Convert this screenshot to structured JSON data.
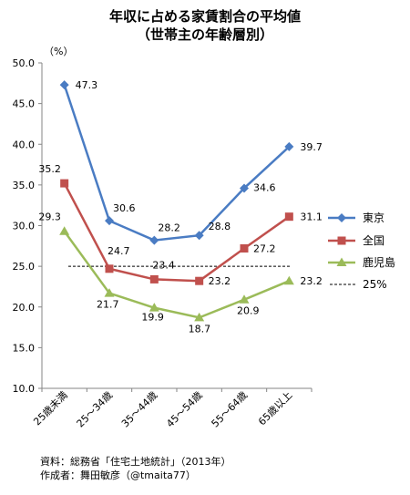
{
  "header": {
    "title_line1": "年収に占める家賃割合の平均値",
    "title_line2": "（世帯主の年齢層別）"
  },
  "chart_data": {
    "type": "line",
    "unit_label": "（%）",
    "categories": [
      "25歳未満",
      "25～34歳",
      "35～44歳",
      "45～54歳",
      "55～64歳",
      "65歳以上"
    ],
    "ylim": [
      10,
      50
    ],
    "yticks": [
      "10.0",
      "15.0",
      "20.0",
      "25.0",
      "30.0",
      "35.0",
      "40.0",
      "45.0",
      "50.0"
    ],
    "grid": false,
    "legend_position": "right",
    "series": [
      {
        "name": "東京",
        "color": "#4a7cc3",
        "marker": "diamond",
        "values": [
          47.3,
          30.6,
          28.2,
          28.8,
          34.6,
          39.7
        ],
        "labels": [
          "47.3",
          "30.6",
          "28.2",
          "28.8",
          "34.6",
          "39.7"
        ]
      },
      {
        "name": "全国",
        "color": "#c0504d",
        "marker": "square",
        "values": [
          35.2,
          24.7,
          23.4,
          23.2,
          27.2,
          31.1
        ],
        "labels": [
          "35.2",
          "24.7",
          "23.4",
          "23.2",
          "27.2",
          "31.1"
        ]
      },
      {
        "name": "鹿児島",
        "color": "#9bbb59",
        "marker": "triangle",
        "values": [
          29.3,
          21.7,
          19.9,
          18.7,
          20.9,
          23.2
        ],
        "labels": [
          "29.3",
          "21.7",
          "19.9",
          "18.7",
          "20.9",
          "23.2"
        ]
      }
    ],
    "reference_line": {
      "name": "25%",
      "value": 25
    }
  },
  "footer": {
    "source": "資料：総務省「住宅土地統計」（2013年）",
    "author": "作成者：舞田敏彦（@tmaita77）"
  }
}
